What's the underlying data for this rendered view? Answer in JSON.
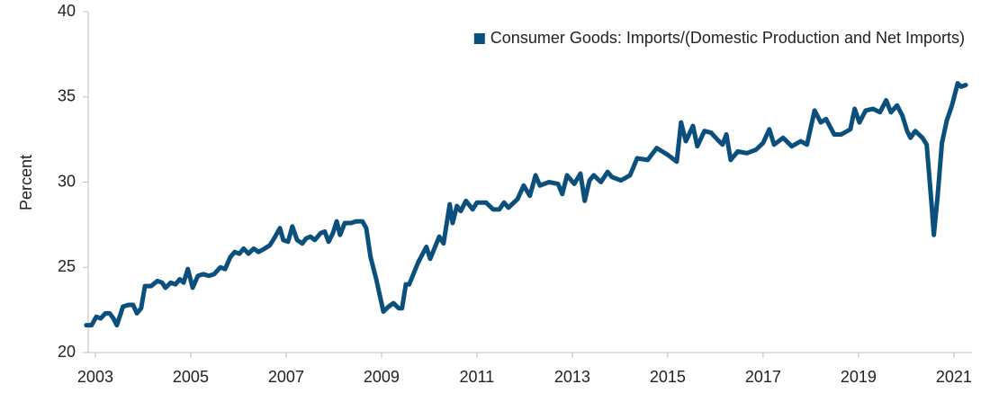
{
  "chart_data": {
    "type": "line",
    "y_label": "Percent",
    "xlim": [
      2002.85,
      2021.38
    ],
    "xticks": [
      2003,
      2005,
      2007,
      2009,
      2011,
      2013,
      2015,
      2017,
      2019,
      2021
    ],
    "ylim": [
      20,
      40
    ],
    "yticks": [
      20,
      25,
      30,
      35,
      40
    ],
    "grid": false,
    "legend": "top-right",
    "x": [
      2002.81,
      2002.92,
      2003.02,
      2003.11,
      2003.21,
      2003.3,
      2003.38,
      2003.45,
      2003.58,
      2003.7,
      2003.79,
      2003.87,
      2003.96,
      2004.04,
      2004.17,
      2004.3,
      2004.4,
      2004.47,
      2004.58,
      2004.68,
      2004.77,
      2004.85,
      2004.94,
      2005.04,
      2005.15,
      2005.26,
      2005.38,
      2005.49,
      2005.62,
      2005.72,
      2005.83,
      2005.92,
      2006.02,
      2006.11,
      2006.21,
      2006.32,
      2006.42,
      2006.55,
      2006.66,
      2006.77,
      2006.87,
      2006.94,
      2007.04,
      2007.13,
      2007.23,
      2007.34,
      2007.42,
      2007.51,
      2007.6,
      2007.72,
      2007.81,
      2007.89,
      2007.98,
      2008.06,
      2008.13,
      2008.23,
      2008.36,
      2008.47,
      2008.6,
      2008.68,
      2008.77,
      2008.89,
      2008.96,
      2009.04,
      2009.15,
      2009.25,
      2009.36,
      2009.43,
      2009.51,
      2009.58,
      2009.77,
      2009.94,
      2010.02,
      2010.21,
      2010.3,
      2010.43,
      2010.49,
      2010.58,
      2010.66,
      2010.77,
      2010.91,
      2011.0,
      2011.19,
      2011.34,
      2011.47,
      2011.57,
      2011.66,
      2011.85,
      2011.98,
      2012.11,
      2012.23,
      2012.32,
      2012.51,
      2012.7,
      2012.79,
      2012.89,
      2013.04,
      2013.17,
      2013.26,
      2013.36,
      2013.45,
      2013.6,
      2013.74,
      2013.83,
      2014.02,
      2014.21,
      2014.36,
      2014.58,
      2014.77,
      2015.0,
      2015.19,
      2015.28,
      2015.38,
      2015.53,
      2015.62,
      2015.77,
      2015.91,
      2016.04,
      2016.15,
      2016.23,
      2016.32,
      2016.47,
      2016.66,
      2016.85,
      2017.0,
      2017.13,
      2017.23,
      2017.42,
      2017.6,
      2017.79,
      2017.92,
      2018.08,
      2018.21,
      2018.32,
      2018.49,
      2018.64,
      2018.83,
      2018.92,
      2019.02,
      2019.15,
      2019.3,
      2019.45,
      2019.58,
      2019.68,
      2019.81,
      2019.92,
      2020.02,
      2020.09,
      2020.19,
      2020.34,
      2020.43,
      2020.53,
      2020.58,
      2020.66,
      2020.75,
      2020.85,
      2020.96,
      2021.08,
      2021.15,
      2021.25
    ],
    "series": [
      {
        "name": "Consumer Goods: Imports/(Domestic Production and Net Imports)",
        "color": "#0b4f7c",
        "values": [
          21.6,
          21.6,
          22.1,
          22.0,
          22.3,
          22.3,
          22.0,
          21.6,
          22.7,
          22.8,
          22.8,
          22.3,
          22.6,
          23.9,
          23.9,
          24.2,
          24.1,
          23.8,
          24.1,
          24.0,
          24.3,
          24.1,
          24.9,
          23.8,
          24.5,
          24.6,
          24.5,
          24.6,
          25.0,
          24.9,
          25.6,
          25.9,
          25.8,
          26.1,
          25.8,
          26.1,
          25.9,
          26.1,
          26.3,
          26.8,
          27.3,
          26.6,
          26.5,
          27.4,
          26.6,
          26.4,
          26.7,
          26.8,
          26.6,
          27.0,
          27.1,
          26.5,
          27.0,
          27.7,
          26.9,
          27.6,
          27.6,
          27.7,
          27.7,
          27.3,
          25.6,
          24.3,
          23.4,
          22.4,
          22.7,
          22.9,
          22.6,
          22.6,
          24.0,
          24.0,
          25.3,
          26.2,
          25.5,
          26.8,
          26.4,
          28.7,
          27.6,
          28.6,
          28.3,
          28.9,
          28.4,
          28.8,
          28.8,
          28.4,
          28.4,
          28.8,
          28.5,
          29.0,
          29.8,
          29.2,
          30.4,
          29.8,
          30.0,
          29.9,
          29.3,
          30.4,
          29.9,
          30.5,
          28.9,
          30.1,
          30.4,
          30.0,
          30.6,
          30.3,
          30.1,
          30.4,
          31.4,
          31.3,
          32.0,
          31.6,
          31.2,
          33.5,
          32.4,
          33.3,
          32.1,
          33.0,
          32.9,
          32.5,
          32.2,
          32.8,
          31.3,
          31.8,
          31.7,
          31.9,
          32.3,
          33.1,
          32.2,
          32.6,
          32.1,
          32.4,
          32.2,
          34.2,
          33.5,
          33.7,
          32.8,
          32.8,
          33.1,
          34.3,
          33.5,
          34.2,
          34.3,
          34.1,
          34.8,
          34.1,
          34.5,
          33.9,
          33.0,
          32.6,
          33.0,
          32.6,
          32.2,
          28.8,
          26.9,
          29.2,
          32.3,
          33.6,
          34.5,
          35.8,
          35.6,
          35.7
        ]
      }
    ]
  }
}
